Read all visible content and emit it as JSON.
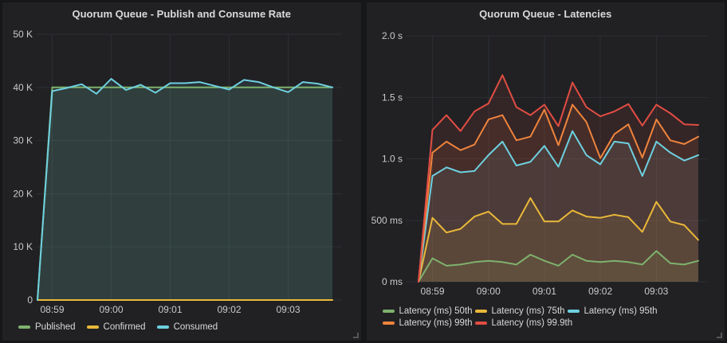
{
  "colors": {
    "page_bg": "#161719",
    "panel_bg": "#212124",
    "grid": "#2c2e33",
    "tick_text": "#c9cacc",
    "legend_text": "#d8d9da",
    "title_text": "#d8d9da",
    "series_green": "#7EB26D",
    "series_yellow": "#EAB839",
    "series_cyan": "#6ED0E0",
    "series_orange": "#EF843C",
    "series_red": "#E24D42"
  },
  "chart_data": [
    {
      "type": "area",
      "title": "Quorum Queue - Publish and Consume Rate",
      "xlabel": "",
      "ylabel": "",
      "ylim": [
        0,
        50000
      ],
      "grid": true,
      "legend_position": "bottom",
      "fill_opacity": 0.1,
      "y_ticks": [
        {
          "value": 0,
          "label": "0"
        },
        {
          "value": 10000,
          "label": "10 K"
        },
        {
          "value": 20000,
          "label": "20 K"
        },
        {
          "value": 30000,
          "label": "30 K"
        },
        {
          "value": 40000,
          "label": "40 K"
        },
        {
          "value": 50000,
          "label": "50 K"
        }
      ],
      "x": [
        "08:58:45",
        "08:59:00",
        "08:59:15",
        "08:59:30",
        "08:59:45",
        "09:00:00",
        "09:00:15",
        "09:00:30",
        "09:00:45",
        "09:01:00",
        "09:01:15",
        "09:01:30",
        "09:01:45",
        "09:02:00",
        "09:02:15",
        "09:02:30",
        "09:02:45",
        "09:03:00",
        "09:03:15",
        "09:03:30",
        "09:03:45"
      ],
      "x_tick_indices": [
        1,
        5,
        9,
        13,
        17
      ],
      "x_tick_labels": [
        "08:59",
        "09:00",
        "09:01",
        "09:02",
        "09:03"
      ],
      "series": [
        {
          "name": "Published",
          "color": "#7EB26D",
          "values": [
            0,
            40000,
            40000,
            40000,
            40000,
            40000,
            40000,
            40000,
            40000,
            40000,
            40000,
            40000,
            40000,
            40000,
            40000,
            40000,
            40000,
            40000,
            40000,
            40000,
            40000
          ]
        },
        {
          "name": "Confirmed",
          "color": "#EAB839",
          "values": [
            0,
            0,
            0,
            0,
            0,
            0,
            0,
            0,
            0,
            0,
            0,
            0,
            0,
            0,
            0,
            0,
            0,
            0,
            0,
            0,
            0
          ]
        },
        {
          "name": "Consumed",
          "color": "#6ED0E0",
          "values": [
            0,
            39300,
            39900,
            40600,
            38800,
            41600,
            39500,
            40500,
            39000,
            40800,
            40800,
            41000,
            40300,
            39600,
            41400,
            41000,
            40000,
            39100,
            41000,
            40700,
            40000
          ]
        }
      ]
    },
    {
      "type": "area",
      "title": "Quorum Queue - Latencies",
      "xlabel": "",
      "ylabel": "",
      "ylim": [
        0,
        2000
      ],
      "grid": true,
      "legend_position": "bottom",
      "fill_opacity": 0.1,
      "y_ticks": [
        {
          "value": 0,
          "label": "0 ms"
        },
        {
          "value": 500,
          "label": "500 ms"
        },
        {
          "value": 1000,
          "label": "1.0 s"
        },
        {
          "value": 1500,
          "label": "1.5 s"
        },
        {
          "value": 2000,
          "label": "2.0 s"
        }
      ],
      "x": [
        "08:58:45",
        "08:59:00",
        "08:59:15",
        "08:59:30",
        "08:59:45",
        "09:00:00",
        "09:00:15",
        "09:00:30",
        "09:00:45",
        "09:01:00",
        "09:01:15",
        "09:01:30",
        "09:01:45",
        "09:02:00",
        "09:02:15",
        "09:02:30",
        "09:02:45",
        "09:03:00",
        "09:03:15",
        "09:03:30",
        "09:03:45"
      ],
      "x_tick_indices": [
        1,
        5,
        9,
        13,
        17
      ],
      "x_tick_labels": [
        "08:59",
        "09:00",
        "09:01",
        "09:02",
        "09:03"
      ],
      "series": [
        {
          "name": "Latency (ms) 50th",
          "color": "#7EB26D",
          "values": [
            0,
            190,
            130,
            140,
            160,
            170,
            160,
            140,
            220,
            170,
            130,
            220,
            170,
            160,
            170,
            160,
            140,
            250,
            150,
            140,
            170
          ]
        },
        {
          "name": "Latency (ms) 75th",
          "color": "#EAB839",
          "values": [
            0,
            520,
            400,
            430,
            530,
            570,
            470,
            470,
            680,
            490,
            490,
            580,
            530,
            520,
            545,
            525,
            405,
            650,
            490,
            460,
            340
          ]
        },
        {
          "name": "Latency (ms) 95th",
          "color": "#6ED0E0",
          "values": [
            0,
            860,
            930,
            890,
            900,
            1030,
            1140,
            945,
            975,
            1105,
            935,
            1225,
            1030,
            955,
            1140,
            1125,
            860,
            1140,
            1050,
            985,
            1030
          ]
        },
        {
          "name": "Latency (ms) 99th",
          "color": "#EF843C",
          "values": [
            0,
            1050,
            1140,
            1070,
            1115,
            1320,
            1355,
            1150,
            1180,
            1400,
            1110,
            1440,
            1300,
            1005,
            1200,
            1280,
            1010,
            1320,
            1150,
            1120,
            1180
          ]
        },
        {
          "name": "Latency (ms) 99.9th",
          "color": "#E24D42",
          "values": [
            0,
            1235,
            1355,
            1225,
            1385,
            1450,
            1680,
            1420,
            1355,
            1440,
            1265,
            1620,
            1420,
            1345,
            1385,
            1445,
            1270,
            1440,
            1370,
            1280,
            1275
          ]
        }
      ]
    }
  ]
}
